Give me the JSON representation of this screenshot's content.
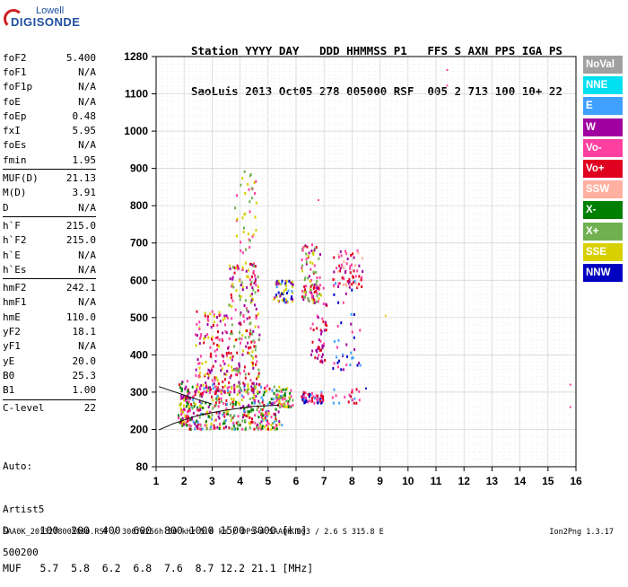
{
  "logo": {
    "line1": "Lowell",
    "line2": "DIGISONDE"
  },
  "header": {
    "line1": "Station YYYY DAY   DDD HHMMSS P1   FFS S AXN PPS IGA PS",
    "line2": "SaoLuis 2013 Oct05 278 005000 RSF  005 2 713 100 10+ 22"
  },
  "params": [
    {
      "name": "foF2",
      "value": "5.400"
    },
    {
      "name": "foF1",
      "value": "N/A"
    },
    {
      "name": "foF1p",
      "value": "N/A"
    },
    {
      "name": "foE",
      "value": "N/A"
    },
    {
      "name": "foEp",
      "value": "0.48"
    },
    {
      "name": "fxI",
      "value": "5.95"
    },
    {
      "name": "foEs",
      "value": "N/A"
    },
    {
      "name": "fmin",
      "value": "1.95"
    },
    {
      "sep": true
    },
    {
      "name": "MUF(D)",
      "value": "21.13"
    },
    {
      "name": "M(D)",
      "value": "3.91"
    },
    {
      "name": "D",
      "value": "N/A"
    },
    {
      "sep": true
    },
    {
      "name": "h`F",
      "value": "215.0"
    },
    {
      "name": "h`F2",
      "value": "215.0"
    },
    {
      "name": "h`E",
      "value": "N/A"
    },
    {
      "name": "h`Es",
      "value": "N/A"
    },
    {
      "sep": true
    },
    {
      "name": "hmF2",
      "value": "242.1"
    },
    {
      "name": "hmF1",
      "value": "N/A"
    },
    {
      "name": "hmE",
      "value": "110.0"
    },
    {
      "name": "yF2",
      "value": "18.1"
    },
    {
      "name": "yF1",
      "value": "N/A"
    },
    {
      "name": "yE",
      "value": "20.0"
    },
    {
      "name": "B0",
      "value": "25.3"
    },
    {
      "name": "B1",
      "value": "1.00"
    },
    {
      "sep": true
    },
    {
      "name": "C-level",
      "value": "22"
    }
  ],
  "auto": {
    "l1": "Auto:",
    "l2": "Artist5",
    "l3": "500200"
  },
  "muf_table": {
    "l1": "D     100  200  400  600  800 1000 1500 3000 [km]",
    "l2": "MUF   5.7  5.8  6.2  6.8  7.6  8.7 12.2 21.1 [MHz]"
  },
  "footer": {
    "left": "SAA0K_2013278005000.RSF / 300fx256h 50 kHz 5.0 km / DPS-4 SAA0K 903 / 2.6 S 315.8 E",
    "right": "Ion2Png 1.3.17"
  },
  "legend": [
    {
      "label": "NoVal",
      "color": "#a0a0a0"
    },
    {
      "label": "NNE",
      "color": "#00e0f0"
    },
    {
      "label": "E",
      "color": "#40a0ff"
    },
    {
      "label": "W",
      "color": "#a000a0"
    },
    {
      "label": "Vo-",
      "color": "#ff40a0"
    },
    {
      "label": "Vo+",
      "color": "#e00020"
    },
    {
      "label": "SSW",
      "color": "#ffb0a0"
    },
    {
      "label": "X-",
      "color": "#008000"
    },
    {
      "label": "X+",
      "color": "#70b050"
    },
    {
      "label": "SSE",
      "color": "#d8d000"
    },
    {
      "label": "NNW",
      "color": "#0000c0"
    }
  ],
  "chart_data": {
    "type": "scatter",
    "xlim": [
      1,
      16
    ],
    "ylim": [
      80,
      1280
    ],
    "xticks": [
      "1",
      "2",
      "3",
      "4",
      "5",
      "6",
      "7",
      "8",
      "9",
      "10",
      "11",
      "12",
      "13",
      "14",
      "15",
      "16"
    ],
    "yticks": [
      "80",
      "200",
      "300",
      "400",
      "500",
      "600",
      "700",
      "800",
      "900",
      "1000",
      "1100",
      "1280"
    ],
    "grid": true,
    "clusters": [
      {
        "x": [
          1.8,
          2.2
        ],
        "y": [
          210,
          330
        ],
        "n": 90,
        "colors": [
          "#e00020",
          "#a000a0",
          "#ff40a0",
          "#008000",
          "#d8d000"
        ]
      },
      {
        "x": [
          2.2,
          5.5
        ],
        "y": [
          200,
          320
        ],
        "n": 380,
        "colors": [
          "#e00020",
          "#ff40a0",
          "#a000a0",
          "#008000",
          "#d8d000",
          "#40a0ff",
          "#70b050"
        ]
      },
      {
        "x": [
          2.4,
          3.6
        ],
        "y": [
          300,
          520
        ],
        "n": 150,
        "colors": [
          "#a000a0",
          "#ff40a0",
          "#e00020",
          "#d8d000"
        ]
      },
      {
        "x": [
          3.6,
          4.7
        ],
        "y": [
          300,
          650
        ],
        "n": 220,
        "colors": [
          "#a000a0",
          "#ff40a0",
          "#e00020",
          "#d8d000",
          "#70b050"
        ]
      },
      {
        "x": [
          3.8,
          4.6
        ],
        "y": [
          600,
          900
        ],
        "n": 45,
        "colors": [
          "#d8d000",
          "#ff40a0",
          "#70b050"
        ]
      },
      {
        "x": [
          5.2,
          5.9
        ],
        "y": [
          540,
          600
        ],
        "n": 55,
        "colors": [
          "#0000c0",
          "#40a0ff",
          "#d8d000",
          "#a000a0"
        ]
      },
      {
        "x": [
          5.3,
          5.9
        ],
        "y": [
          260,
          310
        ],
        "n": 50,
        "colors": [
          "#d8d000",
          "#ff40a0",
          "#008000",
          "#70b050"
        ]
      },
      {
        "x": [
          6.2,
          6.9
        ],
        "y": [
          540,
          700
        ],
        "n": 90,
        "colors": [
          "#ff40a0",
          "#d8d000",
          "#e00020",
          "#a000a0",
          "#70b050"
        ]
      },
      {
        "x": [
          6.2,
          7.0
        ],
        "y": [
          270,
          300
        ],
        "n": 60,
        "colors": [
          "#40a0ff",
          "#0000c0",
          "#e00020",
          "#ff40a0"
        ]
      },
      {
        "x": [
          6.5,
          7.1
        ],
        "y": [
          380,
          580
        ],
        "n": 55,
        "colors": [
          "#a000a0",
          "#ff40a0",
          "#e00020"
        ]
      },
      {
        "x": [
          7.3,
          8.4
        ],
        "y": [
          580,
          680
        ],
        "n": 70,
        "colors": [
          "#ff40a0",
          "#a000a0",
          "#e00020",
          "#ffb0a0"
        ]
      },
      {
        "x": [
          7.3,
          8.3
        ],
        "y": [
          360,
          600
        ],
        "n": 40,
        "colors": [
          "#40a0ff",
          "#0000c0",
          "#ff40a0",
          "#a000a0"
        ]
      },
      {
        "x": [
          7.3,
          8.3
        ],
        "y": [
          270,
          310
        ],
        "n": 20,
        "colors": [
          "#40a0ff",
          "#e00020",
          "#ff40a0"
        ]
      }
    ],
    "trace_curves": [
      {
        "x": [
          1.1,
          1.6,
          2.5,
          3.5,
          4.5,
          5.4
        ],
        "y": [
          198,
          215,
          238,
          252,
          262,
          265
        ],
        "color": "#000000"
      },
      {
        "x": [
          1.1,
          2.0,
          3.0
        ],
        "y": [
          315,
          292,
          268
        ],
        "color": "#000000"
      }
    ],
    "isolated_points": [
      {
        "x": 11.4,
        "y": 1215,
        "color": "#ff40a0"
      },
      {
        "x": 11.4,
        "y": 1140,
        "color": "#ff40a0"
      },
      {
        "x": 6.8,
        "y": 815,
        "color": "#ff40a0"
      },
      {
        "x": 15.8,
        "y": 320,
        "color": "#ff40a0"
      },
      {
        "x": 15.8,
        "y": 260,
        "color": "#ff40a0"
      },
      {
        "x": 9.2,
        "y": 505,
        "color": "#d8d000"
      },
      {
        "x": 8.5,
        "y": 310,
        "color": "#0000c0"
      }
    ]
  }
}
